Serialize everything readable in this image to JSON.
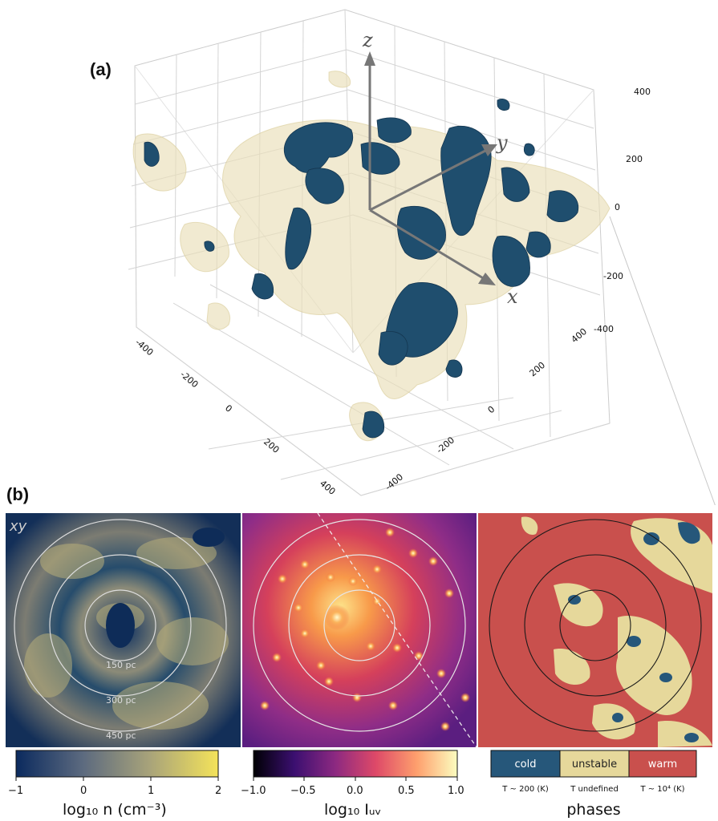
{
  "figure": {
    "panel_a_label": "(a)",
    "panel_b_label": "(b)"
  },
  "panel_a": {
    "axis_letters": {
      "z": "z",
      "y": "y",
      "x": "x"
    },
    "vertical_ticks": [
      "400",
      "200",
      "0",
      "-200",
      "-400"
    ],
    "front_left_ticks": [
      "-400",
      "-200",
      "0",
      "200",
      "400"
    ],
    "front_right_ticks": [
      "-400",
      "-200",
      "0",
      "200",
      "400"
    ],
    "colors": {
      "cold": "#1f4e6e",
      "unstable": "#e9dfb8",
      "grid": "#d4d4d4",
      "arrow": "#777777"
    }
  },
  "panel_b": {
    "plane_label": "xy",
    "ring_labels": [
      "150 pc",
      "300 pc",
      "450 pc"
    ],
    "colorbars": [
      {
        "id": "density",
        "ticks": [
          "−1",
          "0",
          "1",
          "2"
        ],
        "title": "log₁₀ n (cm⁻³)",
        "stops": [
          "#0b2a5e",
          "#5c6a7f",
          "#a8a37a",
          "#f4e35a"
        ]
      },
      {
        "id": "uv",
        "ticks": [
          "−1.0",
          "−0.5",
          "0.0",
          "0.5",
          "1.0"
        ],
        "title": "log₁₀ Iᵤᵥ",
        "stops": [
          "#000004",
          "#3b0f70",
          "#8c2981",
          "#de4968",
          "#fe9f6d",
          "#fcfdbf"
        ]
      }
    ],
    "phases": {
      "title": "phases",
      "items": [
        {
          "label": "cold",
          "color": "#26577a",
          "sub": "T ~ 200 (K)"
        },
        {
          "label": "unstable",
          "color": "#e6d89b",
          "sub": "T undefined"
        },
        {
          "label": "warm",
          "color": "#c9504d",
          "sub": "T ~ 10⁴ (K)"
        }
      ]
    }
  }
}
